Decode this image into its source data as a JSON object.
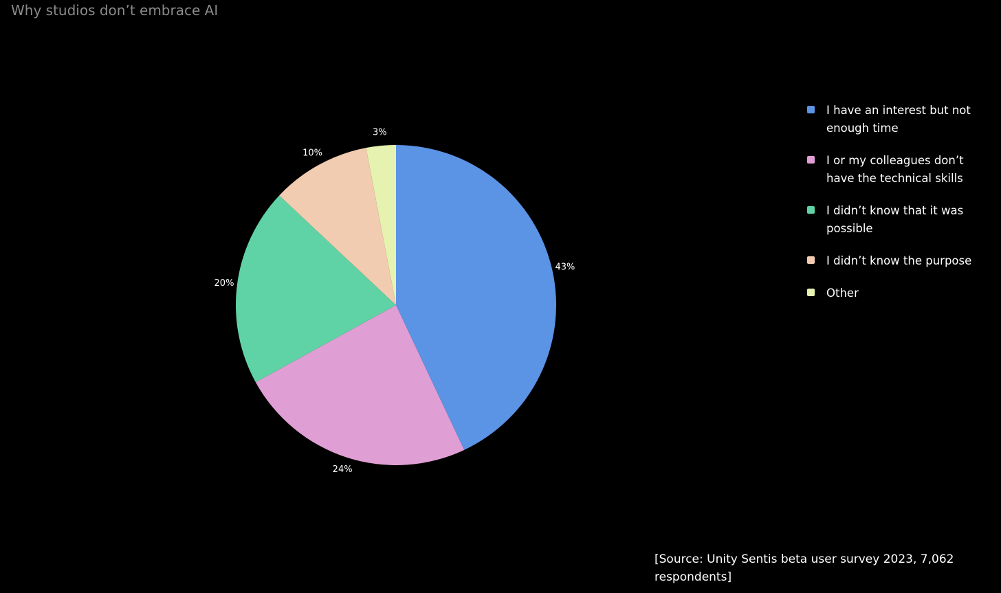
{
  "chart_data": {
    "type": "pie",
    "title": "Why studios don’t embrace AI",
    "categories": [
      "I have an interest but not enough time",
      "I or my colleagues don’t have the technical skills",
      "I didn’t know that it was possible",
      "I didn’t know the purpose",
      "Other"
    ],
    "values": [
      43,
      24,
      20,
      10,
      3
    ],
    "value_labels": [
      "43%",
      "24%",
      "20%",
      "10%",
      "3%"
    ],
    "colors": [
      "#5b93e5",
      "#e09fd4",
      "#60d3a6",
      "#f2ccb0",
      "#e6f2b0"
    ],
    "source": "[Source: Unity Sentis beta user survey 2023, 7,062 respondents]"
  }
}
